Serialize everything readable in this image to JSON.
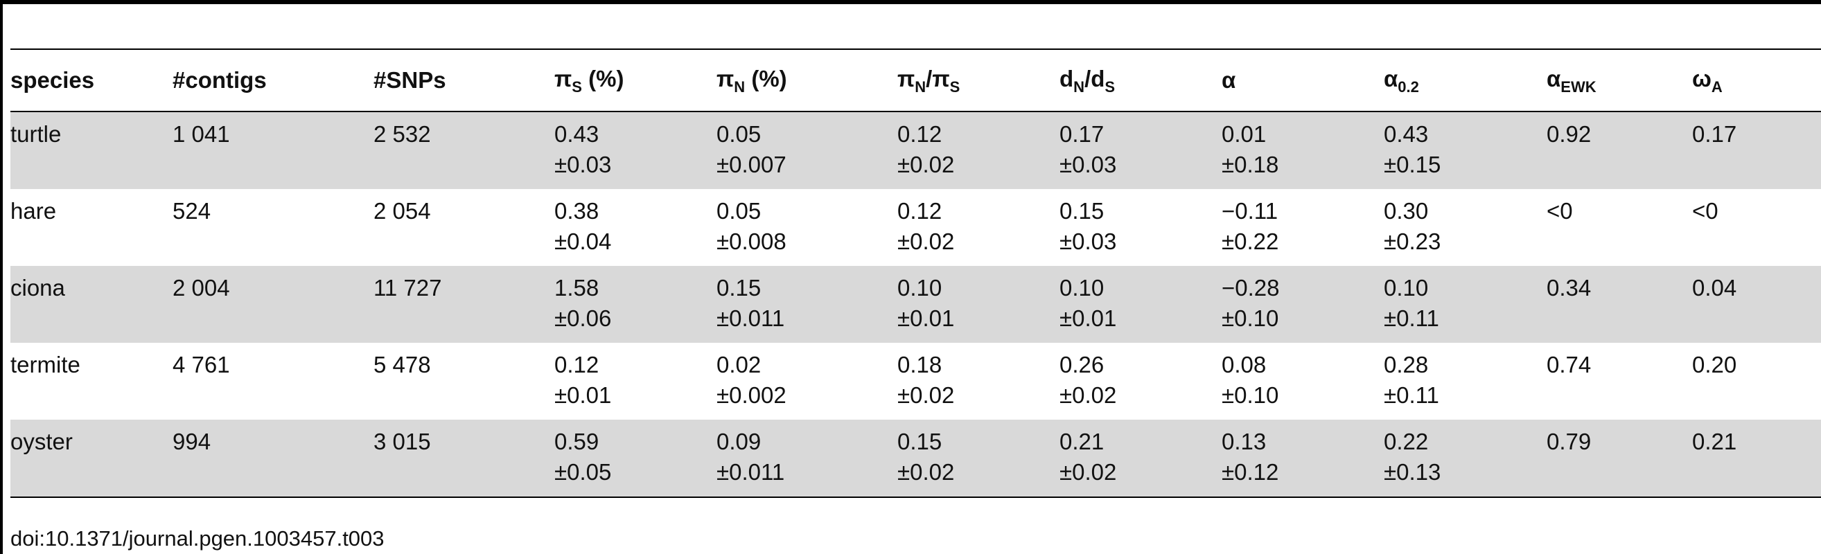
{
  "table": {
    "headers": [
      {
        "id": "species",
        "main": "species",
        "sub": "",
        "suffix": ""
      },
      {
        "id": "contigs",
        "main": "#contigs",
        "sub": "",
        "suffix": ""
      },
      {
        "id": "snps",
        "main": "#SNPs",
        "sub": "",
        "suffix": ""
      },
      {
        "id": "pis",
        "main": "π",
        "sub": "S",
        "suffix": " (%)"
      },
      {
        "id": "pin",
        "main": "π",
        "sub": "N",
        "suffix": " (%)"
      },
      {
        "id": "pinpis",
        "main": "π",
        "sub": "N",
        "suffix": "/π",
        "sub2": "S"
      },
      {
        "id": "dnds",
        "main": "d",
        "sub": "N",
        "suffix": "/d",
        "sub2": "S"
      },
      {
        "id": "alpha",
        "main": "α",
        "sub": "",
        "suffix": ""
      },
      {
        "id": "alpha02",
        "main": "α",
        "sub": "0.2",
        "suffix": ""
      },
      {
        "id": "alphaewk",
        "main": "α",
        "sub": "EWK",
        "suffix": ""
      },
      {
        "id": "omegaa",
        "main": "ω",
        "sub": "A",
        "suffix": ""
      }
    ],
    "rows": [
      {
        "species": "turtle",
        "contigs": "1 041",
        "snps": "2 532",
        "pis": [
          "0.43",
          "±0.03"
        ],
        "pin": [
          "0.05",
          "±0.007"
        ],
        "pinpis": [
          "0.12",
          "±0.02"
        ],
        "dnds": [
          "0.17",
          "±0.03"
        ],
        "alpha": [
          "0.01",
          "±0.18"
        ],
        "alpha02": [
          "0.43",
          "±0.15"
        ],
        "alphaewk": "0.92",
        "omegaa": "0.17"
      },
      {
        "species": "hare",
        "contigs": "524",
        "snps": "2 054",
        "pis": [
          "0.38",
          "±0.04"
        ],
        "pin": [
          "0.05",
          "±0.008"
        ],
        "pinpis": [
          "0.12",
          "±0.02"
        ],
        "dnds": [
          "0.15",
          "±0.03"
        ],
        "alpha": [
          "−0.11",
          "±0.22"
        ],
        "alpha02": [
          "0.30",
          "±0.23"
        ],
        "alphaewk": "<0",
        "omegaa": "<0"
      },
      {
        "species": "ciona",
        "contigs": "2 004",
        "snps": "11 727",
        "pis": [
          "1.58",
          "±0.06"
        ],
        "pin": [
          "0.15",
          "±0.011"
        ],
        "pinpis": [
          "0.10",
          "±0.01"
        ],
        "dnds": [
          "0.10",
          "±0.01"
        ],
        "alpha": [
          "−0.28",
          "±0.10"
        ],
        "alpha02": [
          "0.10",
          "±0.11"
        ],
        "alphaewk": "0.34",
        "omegaa": "0.04"
      },
      {
        "species": "termite",
        "contigs": "4 761",
        "snps": "5 478",
        "pis": [
          "0.12",
          "±0.01"
        ],
        "pin": [
          "0.02",
          "±0.002"
        ],
        "pinpis": [
          "0.18",
          "±0.02"
        ],
        "dnds": [
          "0.26",
          "±0.02"
        ],
        "alpha": [
          "0.08",
          "±0.10"
        ],
        "alpha02": [
          "0.28",
          "±0.11"
        ],
        "alphaewk": "0.74",
        "omegaa": "0.20"
      },
      {
        "species": "oyster",
        "contigs": "994",
        "snps": "3 015",
        "pis": [
          "0.59",
          "±0.05"
        ],
        "pin": [
          "0.09",
          "±0.011"
        ],
        "pinpis": [
          "0.15",
          "±0.02"
        ],
        "dnds": [
          "0.21",
          "±0.02"
        ],
        "alpha": [
          "0.13",
          "±0.12"
        ],
        "alpha02": [
          "0.22",
          "±0.13"
        ],
        "alphaewk": "0.79",
        "omegaa": "0.21"
      }
    ]
  },
  "footer": {
    "doi": "doi:10.1371/journal.pgen.1003457.t003"
  }
}
